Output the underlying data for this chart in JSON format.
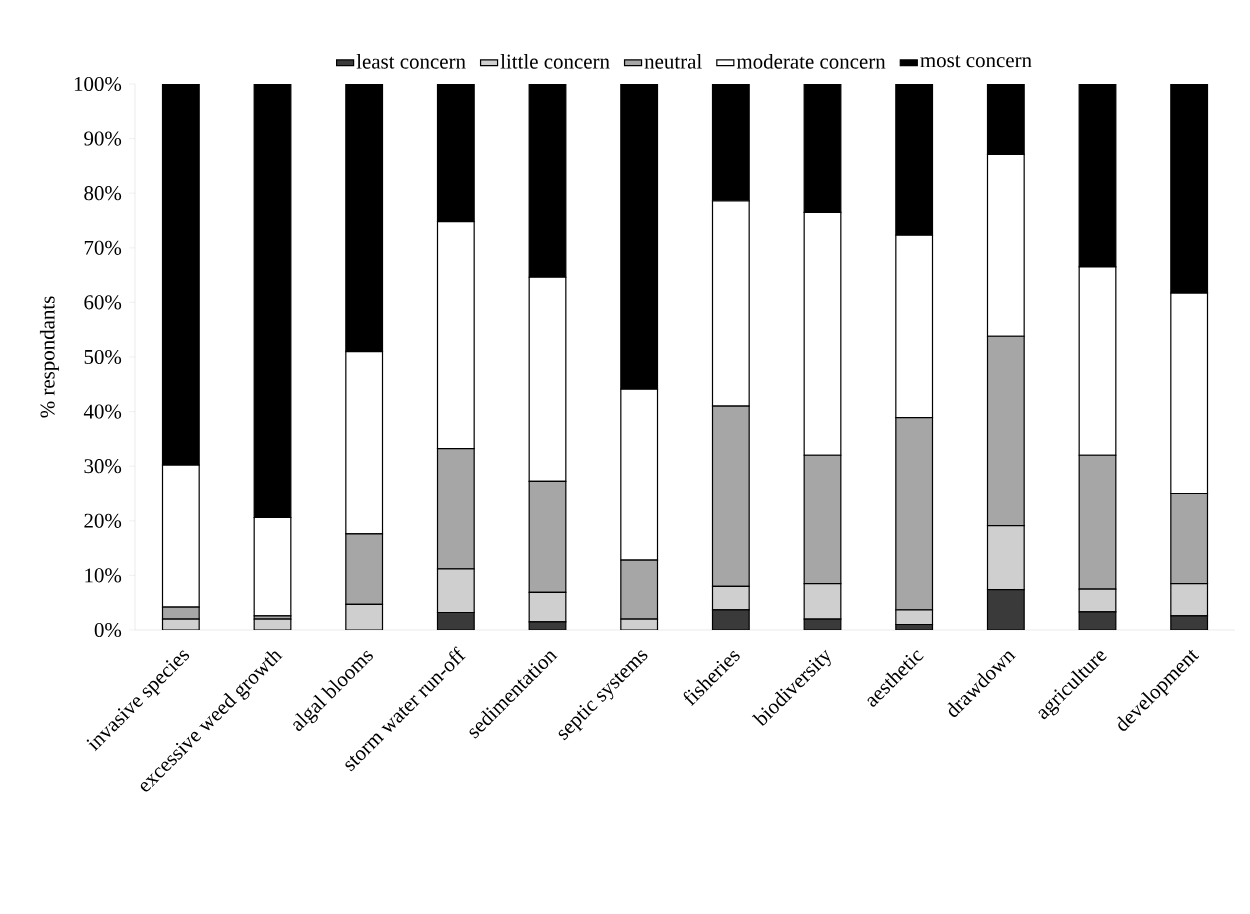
{
  "chart_data": {
    "type": "bar",
    "stacked": true,
    "ylabel": "% respondants",
    "legend": "top",
    "grid": false,
    "categories": [
      "invasive species",
      "excessive weed growth",
      "algal blooms",
      "storm water run-off",
      "sedimentation",
      "septic systems",
      "fisheries",
      "biodiversity",
      "aesthetic",
      "drawdown",
      "agriculture",
      "development"
    ],
    "ylim": [
      0,
      100
    ],
    "yticks": [
      {
        "value": 0,
        "label": "0%"
      },
      {
        "value": 10,
        "label": "10%"
      },
      {
        "value": 20,
        "label": "20%"
      },
      {
        "value": 30,
        "label": "30%"
      },
      {
        "value": 40,
        "label": "40%"
      },
      {
        "value": 50,
        "label": "50%"
      },
      {
        "value": 60,
        "label": "60%"
      },
      {
        "value": 70,
        "label": "70%"
      },
      {
        "value": 80,
        "label": "80%"
      },
      {
        "value": 90,
        "label": "90%"
      },
      {
        "value": 100,
        "label": "100%"
      }
    ],
    "series": [
      {
        "name": "least concern",
        "color": "#3a3a3a",
        "values": [
          null,
          null,
          null,
          3.2,
          1.5,
          0,
          3.7,
          2,
          1,
          7.4,
          3.3,
          2.6
        ]
      },
      {
        "name": "little concern",
        "color": "#cfcfcf",
        "values": [
          2,
          2,
          4.7,
          8,
          5.4,
          2,
          4.3,
          6.5,
          2.7,
          11.7,
          4.2,
          5.9
        ]
      },
      {
        "name": "neutral",
        "color": "#a6a6a6",
        "values": [
          2.2,
          0.6,
          12.9,
          22,
          20.3,
          10.8,
          33,
          23.5,
          35.2,
          34.7,
          24.5,
          16.5
        ]
      },
      {
        "name": "moderate concern",
        "color": "#ffffff",
        "values": [
          26,
          18,
          33.4,
          41.6,
          37.4,
          31.3,
          37.6,
          44.5,
          33.4,
          33.3,
          34.5,
          36.7
        ]
      },
      {
        "name": "most concern",
        "color": "#000000",
        "values": [
          69.8,
          79.4,
          49,
          25.2,
          35.4,
          55.9,
          21.4,
          23.5,
          27.7,
          12.9,
          33.5,
          38.3
        ]
      }
    ]
  }
}
